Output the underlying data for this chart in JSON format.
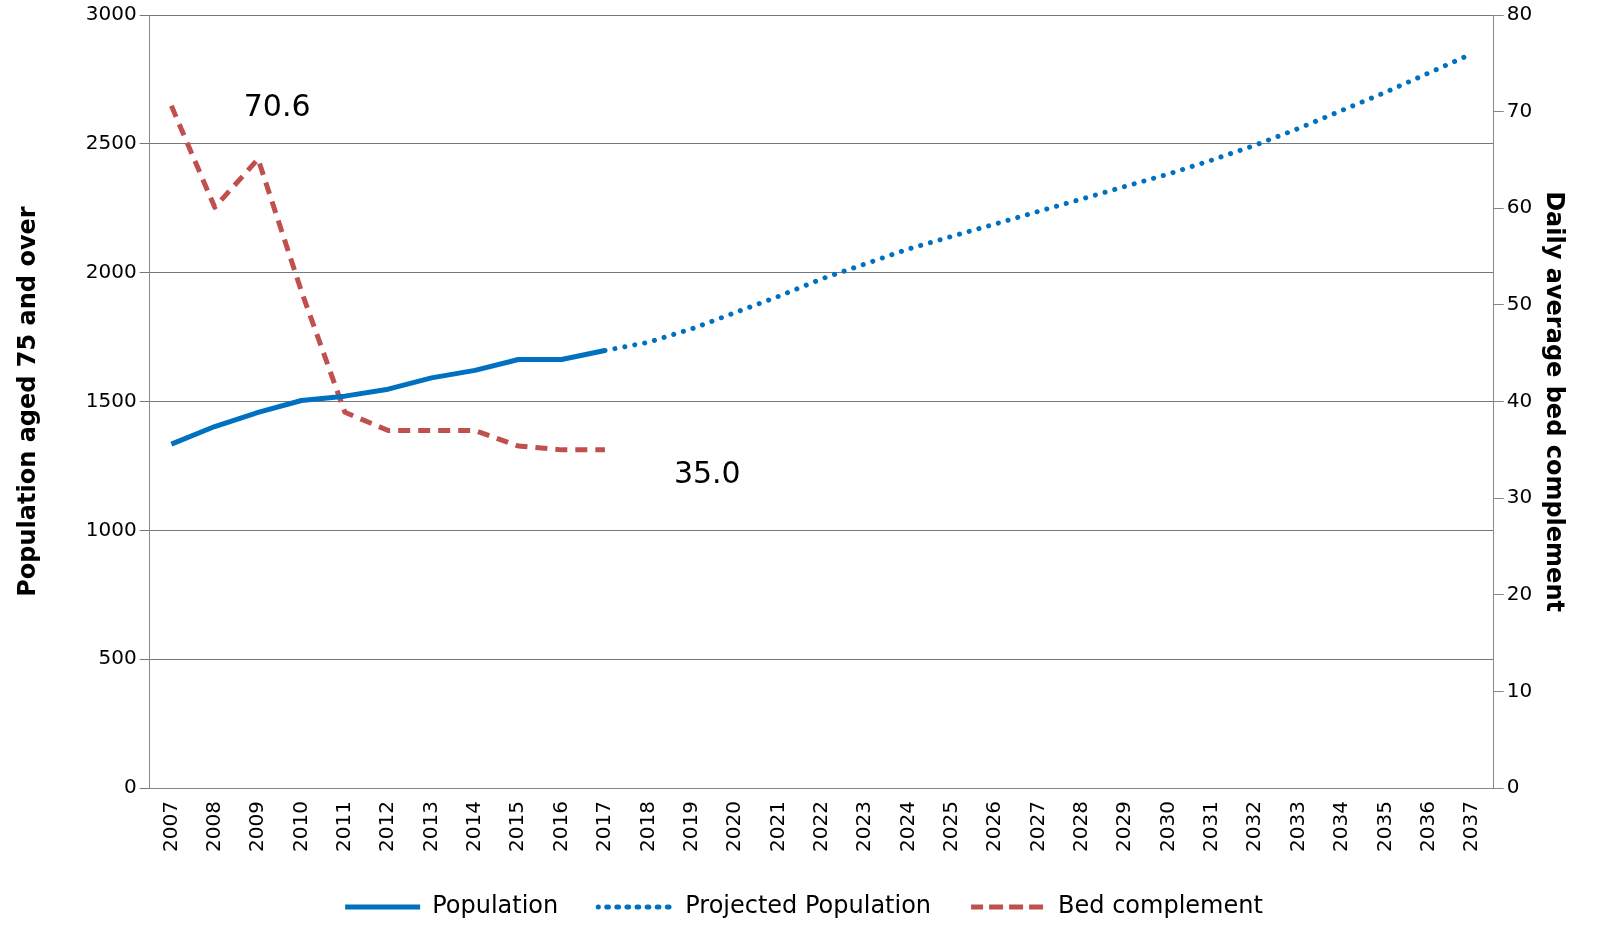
{
  "chart_data": {
    "type": "line",
    "ylabel": "Population aged 75 and over",
    "y2label": "Daily average bed complement",
    "categories": [
      "2007",
      "2008",
      "2009",
      "2010",
      "2011",
      "2012",
      "2013",
      "2014",
      "2015",
      "2016",
      "2017",
      "2018",
      "2019",
      "2020",
      "2021",
      "2022",
      "2023",
      "2024",
      "2025",
      "2026",
      "2027",
      "2028",
      "2029",
      "2030",
      "2031",
      "2032",
      "2033",
      "2034",
      "2035",
      "2036",
      "2037"
    ],
    "series": [
      {
        "name": "Population",
        "color": "#0070c0",
        "line_style": "solid",
        "values": [
          1335,
          1403,
          1458,
          1504,
          1521,
          1548,
          1592,
          1621,
          1663,
          1663,
          1698,
          null,
          null,
          null,
          null,
          null,
          null,
          null,
          null,
          null,
          null,
          null,
          null,
          null,
          null,
          null,
          null,
          null,
          null,
          null,
          null
        ]
      },
      {
        "name": "Projected Population",
        "color": "#0070c0",
        "line_style": "dotted",
        "values": [
          null,
          null,
          null,
          null,
          null,
          null,
          null,
          null,
          null,
          null,
          1698,
          1730,
          1782,
          1845,
          1908,
          1976,
          2034,
          2092,
          2141,
          2189,
          2238,
          2286,
          2335,
          2383,
          2437,
          2495,
          2560,
          2630,
          2700,
          2775,
          2850
        ]
      },
      {
        "name": "Bed complement",
        "color": "#c0504d",
        "line_style": "dashed",
        "axis": "y2",
        "values": [
          70.6,
          60.1,
          65.1,
          51.4,
          38.9,
          37.0,
          37.0,
          37.0,
          35.4,
          35.0,
          35.0,
          null,
          null,
          null,
          null,
          null,
          null,
          null,
          null,
          null,
          null,
          null,
          null,
          null,
          null,
          null,
          null,
          null,
          null,
          null,
          null
        ]
      }
    ],
    "ylim": [
      0,
      3000
    ],
    "yticks": [
      0,
      500,
      1000,
      1500,
      2000,
      2500,
      3000
    ],
    "y2lim": [
      0,
      80
    ],
    "y2ticks": [
      0,
      10,
      20,
      30,
      40,
      50,
      60,
      70,
      80
    ],
    "grid": "y",
    "legend": "bottom",
    "marker": "none",
    "annotations": [
      "70.6",
      "35.0"
    ]
  }
}
